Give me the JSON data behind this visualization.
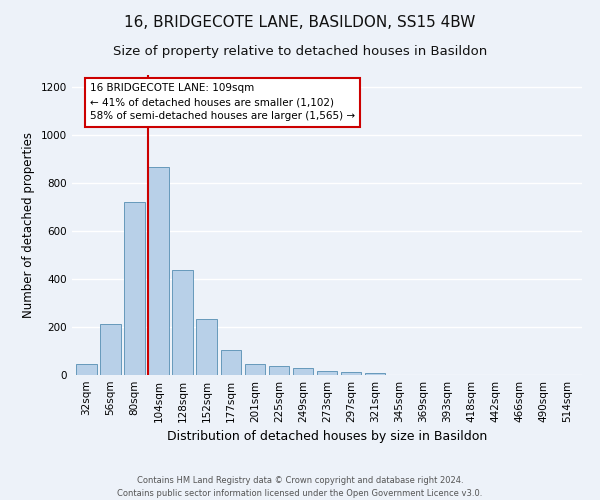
{
  "title1": "16, BRIDGECOTE LANE, BASILDON, SS15 4BW",
  "title2": "Size of property relative to detached houses in Basildon",
  "xlabel": "Distribution of detached houses by size in Basildon",
  "ylabel": "Number of detached properties",
  "footer1": "Contains HM Land Registry data © Crown copyright and database right 2024.",
  "footer2": "Contains public sector information licensed under the Open Government Licence v3.0.",
  "categories": [
    "32sqm",
    "56sqm",
    "80sqm",
    "104sqm",
    "128sqm",
    "152sqm",
    "177sqm",
    "201sqm",
    "225sqm",
    "249sqm",
    "273sqm",
    "297sqm",
    "321sqm",
    "345sqm",
    "369sqm",
    "393sqm",
    "418sqm",
    "442sqm",
    "466sqm",
    "490sqm",
    "514sqm"
  ],
  "values": [
    47,
    213,
    720,
    866,
    438,
    232,
    105,
    44,
    37,
    28,
    18,
    12,
    10,
    0,
    0,
    0,
    0,
    0,
    0,
    0,
    0
  ],
  "bar_color": "#b8d0e8",
  "bar_edge_color": "#6699bb",
  "vline_bin_index": 3,
  "annotation_text": "16 BRIDGECOTE LANE: 109sqm\n← 41% of detached houses are smaller (1,102)\n58% of semi-detached houses are larger (1,565) →",
  "annotation_box_color": "#ffffff",
  "annotation_box_edge": "#cc0000",
  "vline_color": "#cc0000",
  "ylim": [
    0,
    1250
  ],
  "yticks": [
    0,
    200,
    400,
    600,
    800,
    1000,
    1200
  ],
  "background_color": "#edf2f9",
  "grid_color": "#ffffff",
  "title_fontsize": 11,
  "subtitle_fontsize": 9.5,
  "ylabel_fontsize": 8.5,
  "xlabel_fontsize": 9,
  "tick_fontsize": 7.5,
  "annotation_fontsize": 7.5,
  "footer_fontsize": 6
}
